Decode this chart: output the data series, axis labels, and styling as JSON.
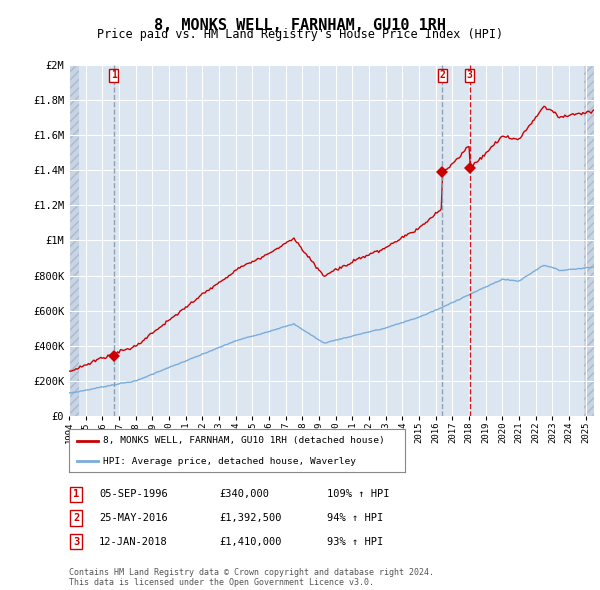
{
  "title": "8, MONKS WELL, FARNHAM, GU10 1RH",
  "subtitle": "Price paid vs. HM Land Registry's House Price Index (HPI)",
  "ylabel_ticks": [
    "£0",
    "£200K",
    "£400K",
    "£600K",
    "£800K",
    "£1M",
    "£1.2M",
    "£1.4M",
    "£1.6M",
    "£1.8M",
    "£2M"
  ],
  "ylabel_values": [
    0,
    200000,
    400000,
    600000,
    800000,
    1000000,
    1200000,
    1400000,
    1600000,
    1800000,
    2000000
  ],
  "ylim": [
    0,
    2000000
  ],
  "plot_bg_color": "#dce6f1",
  "grid_color": "#ffffff",
  "line1_color": "#cc0000",
  "line2_color": "#7aaddb",
  "vline1_color": "#999999",
  "vline3_color": "#cc0000",
  "transaction_markers": [
    {
      "year": 1996,
      "month": 9,
      "day": 5,
      "price": 340000,
      "label": "1",
      "vline_style": "dashed_gray"
    },
    {
      "year": 2016,
      "month": 5,
      "day": 25,
      "price": 1392500,
      "label": "2",
      "vline_style": "dashed_gray"
    },
    {
      "year": 2018,
      "month": 1,
      "day": 12,
      "price": 1410000,
      "label": "3",
      "vline_style": "dashed_red"
    }
  ],
  "legend_line1": "8, MONKS WELL, FARNHAM, GU10 1RH (detached house)",
  "legend_line2": "HPI: Average price, detached house, Waverley",
  "table_rows": [
    {
      "num": "1",
      "date": "05-SEP-1996",
      "price": "£340,000",
      "pct": "109% ↑ HPI"
    },
    {
      "num": "2",
      "date": "25-MAY-2016",
      "price": "£1,392,500",
      "pct": "94% ↑ HPI"
    },
    {
      "num": "3",
      "date": "12-JAN-2018",
      "price": "£1,410,000",
      "pct": "93% ↑ HPI"
    }
  ],
  "footer": "Contains HM Land Registry data © Crown copyright and database right 2024.\nThis data is licensed under the Open Government Licence v3.0.",
  "xmin_year": 1994.0,
  "xmax_year": 2025.5,
  "xtick_years": [
    1994,
    1995,
    1996,
    1997,
    1998,
    1999,
    2000,
    2001,
    2002,
    2003,
    2004,
    2005,
    2006,
    2007,
    2008,
    2009,
    2010,
    2011,
    2012,
    2013,
    2014,
    2015,
    2016,
    2017,
    2018,
    2019,
    2020,
    2021,
    2022,
    2023,
    2024,
    2025
  ]
}
